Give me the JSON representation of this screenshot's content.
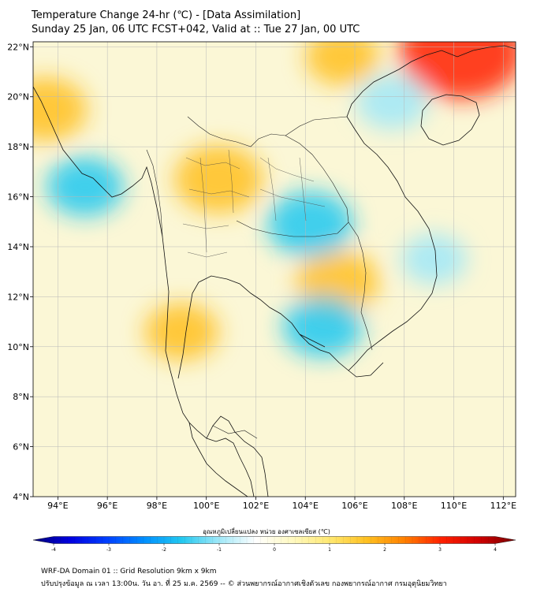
{
  "title": {
    "line1": "Temperature Change 24-hr (℃) - [Data Assimilation]",
    "line2": "Sunday 25 Jan, 06 UTC FCST+042, Valid at :: Tue 27 Jan, 00 UTC"
  },
  "axes": {
    "lat_labels": [
      "22°N",
      "20°N",
      "18°N",
      "16°N",
      "14°N",
      "12°N",
      "10°N",
      "8°N",
      "6°N",
      "4°N"
    ],
    "lat_values": [
      22,
      20,
      18,
      16,
      14,
      12,
      10,
      8,
      6,
      4
    ],
    "lon_labels": [
      "94°E",
      "96°E",
      "98°E",
      "100°E",
      "102°E",
      "104°E",
      "106°E",
      "108°E",
      "110°E",
      "112°E"
    ],
    "lon_values": [
      94,
      96,
      98,
      100,
      102,
      104,
      106,
      108,
      110,
      112
    ],
    "lon_range": [
      93,
      112.5
    ],
    "lat_range": [
      4,
      22.2
    ]
  },
  "colorbar": {
    "label": "อุณหภูมิเปลี่ยนแปลง หน่วย องศาเซลเซียส (℃)",
    "ticks": [
      "-4",
      "-3",
      "-2",
      "-1",
      "0",
      "1",
      "2",
      "3",
      "4"
    ],
    "range": [
      -4,
      4
    ],
    "colors": [
      "#00007a",
      "#0000e0",
      "#0040ff",
      "#0090ff",
      "#22c8f0",
      "#9fe8f8",
      "#ffffff",
      "#fff9c0",
      "#ffe870",
      "#ffc020",
      "#ff8000",
      "#ff2000",
      "#d00000",
      "#7a0000"
    ]
  },
  "footer": {
    "line1": "WRF-DA Domain 01 :: Grid Resolution 9km x 9km",
    "line2": "ปรับปรุงข้อมูล ณ เวลา 13:00น. วัน อา. ที่ 25 ม.ค. 2569 -- © ส่วนพยากรณ์อากาศเชิงตัวเลข กองพยากรณ์อากาศ กรมอุตุนิยมวิทยา"
  },
  "field_anomalies": [
    {
      "name": "warm-north-burma",
      "lon": 93.5,
      "lat": 19.5,
      "value": 1.6
    },
    {
      "name": "warm-north-thailand",
      "lon": 100.5,
      "lat": 16.7,
      "value": 1.8
    },
    {
      "name": "warm-hainan-north",
      "lon": 110.3,
      "lat": 21.8,
      "value": 3.0
    },
    {
      "name": "warm-cambodia",
      "lon": 105.3,
      "lat": 12.6,
      "value": 1.6
    },
    {
      "name": "warm-myanmar-north",
      "lon": 105.5,
      "lat": 21.6,
      "value": 1.3
    },
    {
      "name": "cool-bay-of-bengal",
      "lon": 95.1,
      "lat": 16.4,
      "value": -1.4
    },
    {
      "name": "cool-northeast-thailand",
      "lon": 104.2,
      "lat": 14.9,
      "value": -1.7
    },
    {
      "name": "cool-mekong-delta",
      "lon": 104.7,
      "lat": 10.8,
      "value": -1.5
    },
    {
      "name": "cool-gulf-of-tonkin",
      "lon": 107.5,
      "lat": 19.8,
      "value": -1.2
    },
    {
      "name": "cool-south-vietnam-coast",
      "lon": 109.2,
      "lat": 13.5,
      "value": -1.0
    },
    {
      "name": "warm-andaman",
      "lon": 99.0,
      "lat": 10.6,
      "value": 1.3
    }
  ]
}
